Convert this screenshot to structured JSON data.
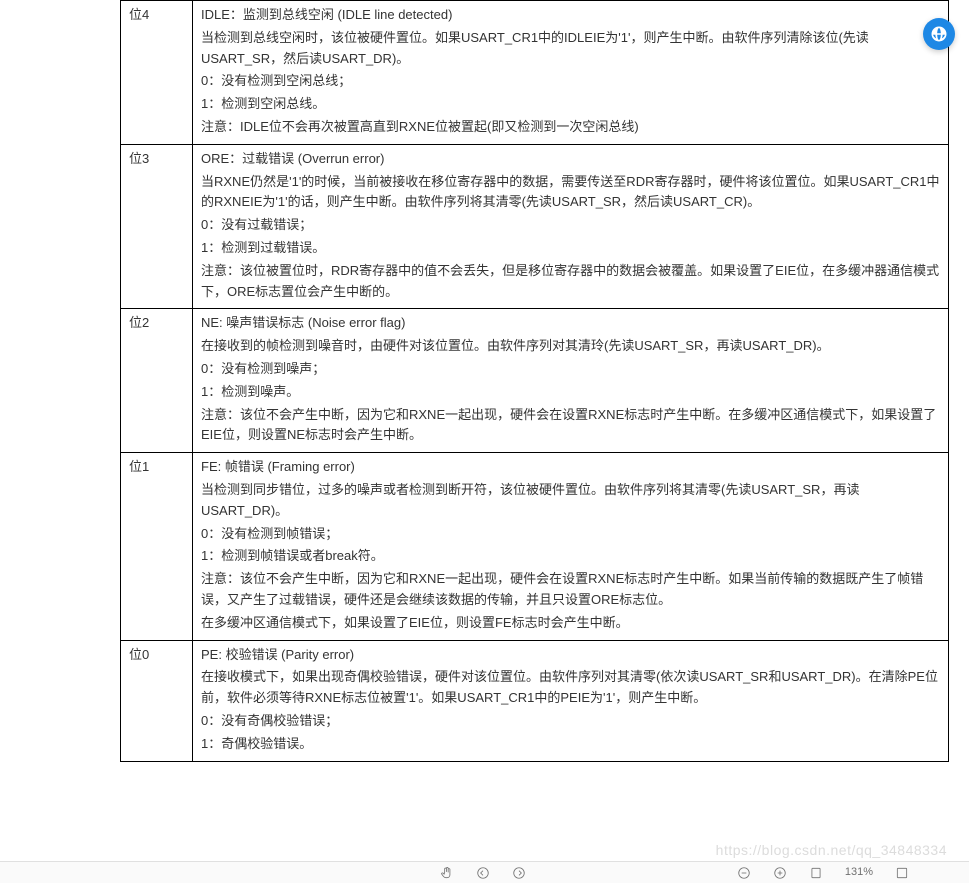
{
  "float_button": {
    "name": "translate-icon"
  },
  "watermark": "https://blog.csdn.net/qq_34848334",
  "zoom_label": "131%",
  "rows": [
    {
      "bit": "位4",
      "title": "IDLE：监测到总线空闲 (IDLE line detected)",
      "paras": [
        "当检测到总线空闲时，该位被硬件置位。如果USART_CR1中的IDLEIE为'1'，则产生中断。由软件序列清除该位(先读USART_SR，然后读USART_DR)。",
        "0：没有检测到空闲总线；",
        "1：检测到空闲总线。",
        "注意：IDLE位不会再次被置高直到RXNE位被置起(即又检测到一次空闲总线)"
      ]
    },
    {
      "bit": "位3",
      "title": "ORE：过载错误 (Overrun error)",
      "paras": [
        "当RXNE仍然是'1'的时候，当前被接收在移位寄存器中的数据，需要传送至RDR寄存器时，硬件将该位置位。如果USART_CR1中的RXNEIE为'1'的话，则产生中断。由软件序列将其清零(先读USART_SR，然后读USART_CR)。",
        "0：没有过载错误；",
        "1：检测到过载错误。",
        "注意：该位被置位时，RDR寄存器中的值不会丢失，但是移位寄存器中的数据会被覆盖。如果设置了EIE位，在多缓冲器通信模式下，ORE标志置位会产生中断的。"
      ]
    },
    {
      "bit": "位2",
      "title": "NE: 噪声错误标志 (Noise error flag)",
      "paras": [
        "在接收到的帧检测到噪音时，由硬件对该位置位。由软件序列对其清玲(先读USART_SR，再读USART_DR)。",
        "0：没有检测到噪声；",
        "1：检测到噪声。",
        "注意：该位不会产生中断，因为它和RXNE一起出现，硬件会在设置RXNE标志时产生中断。在多缓冲区通信模式下，如果设置了EIE位，则设置NE标志时会产生中断。"
      ]
    },
    {
      "bit": "位1",
      "title": "FE: 帧错误 (Framing error)",
      "paras": [
        "当检测到同步错位，过多的噪声或者检测到断开符，该位被硬件置位。由软件序列将其清零(先读USART_SR，再读USART_DR)。",
        "0：没有检测到帧错误；",
        "1：检测到帧错误或者break符。",
        "注意：该位不会产生中断，因为它和RXNE一起出现，硬件会在设置RXNE标志时产生中断。如果当前传输的数据既产生了帧错误，又产生了过载错误，硬件还是会继续该数据的传输，并且只设置ORE标志位。",
        "在多缓冲区通信模式下，如果设置了EIE位，则设置FE标志时会产生中断。"
      ]
    },
    {
      "bit": "位0",
      "title": "PE: 校验错误 (Parity error)",
      "paras": [
        "在接收模式下，如果出现奇偶校验错误，硬件对该位置位。由软件序列对其清零(依次读USART_SR和USART_DR)。在清除PE位前，软件必须等待RXNE标志位被置'1'。如果USART_CR1中的PEIE为'1'，则产生中断。",
        "0：没有奇偶校验错误；",
        "1：奇偶校验错误。"
      ]
    }
  ]
}
